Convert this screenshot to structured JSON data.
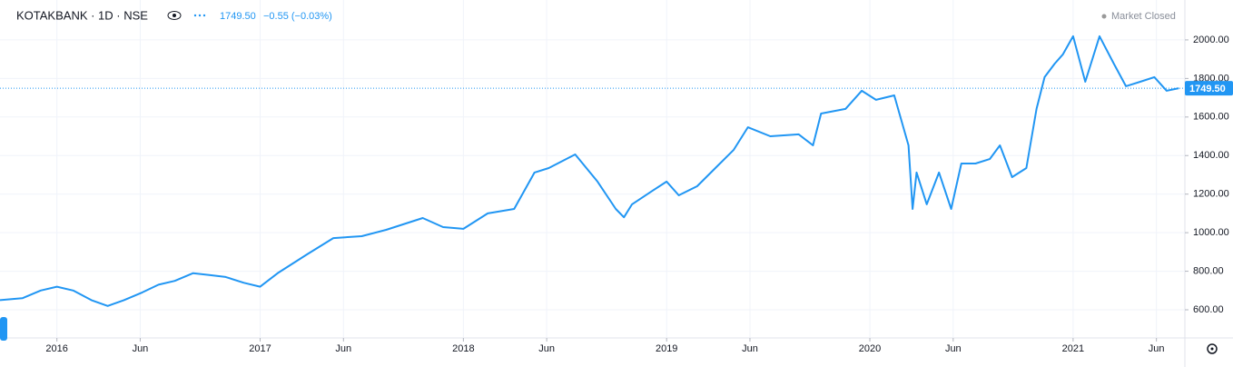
{
  "header": {
    "symbol": "KOTAKBANK · 1D · NSE",
    "price": "1749.50",
    "change": "−0.55 (−0.03%)",
    "status": "Market Closed"
  },
  "chart_data": {
    "type": "line",
    "x": [
      2015.72,
      2015.83,
      2015.92,
      2016.0,
      2016.08,
      2016.17,
      2016.25,
      2016.33,
      2016.42,
      2016.5,
      2016.58,
      2016.67,
      2016.75,
      2016.83,
      2016.92,
      2017.0,
      2017.09,
      2017.23,
      2017.36,
      2017.5,
      2017.62,
      2017.8,
      2017.9,
      2018.0,
      2018.12,
      2018.25,
      2018.35,
      2018.42,
      2018.55,
      2018.66,
      2018.75,
      2018.79,
      2018.83,
      2018.93,
      2019.0,
      2019.06,
      2019.15,
      2019.24,
      2019.33,
      2019.4,
      2019.51,
      2019.65,
      2019.72,
      2019.76,
      2019.88,
      2019.96,
      2020.03,
      2020.12,
      2020.19,
      2020.21,
      2020.23,
      2020.28,
      2020.34,
      2020.4,
      2020.45,
      2020.52,
      2020.59,
      2020.64,
      2020.7,
      2020.77,
      2020.82,
      2020.86,
      2020.91,
      2020.95,
      2021.0,
      2021.06,
      2021.13,
      2021.2,
      2021.26,
      2021.33,
      2021.4,
      2021.46,
      2021.52
    ],
    "series": [
      {
        "name": "KOTAKBANK",
        "color": "#2196f3",
        "values": [
          650,
          660,
          700,
          720,
          700,
          650,
          620,
          650,
          690,
          730,
          750,
          790,
          780,
          770,
          740,
          720,
          793,
          887,
          972,
          982,
          1015,
          1076,
          1029,
          1020,
          1100,
          1123,
          1312,
          1335,
          1406,
          1265,
          1123,
          1080,
          1147,
          1217,
          1265,
          1194,
          1241,
          1335,
          1430,
          1547,
          1500,
          1510,
          1453,
          1618,
          1642,
          1736,
          1689,
          1712,
          1453,
          1123,
          1312,
          1147,
          1312,
          1123,
          1359,
          1359,
          1382,
          1453,
          1288,
          1335,
          1642,
          1807,
          1877,
          1925,
          2019,
          1783,
          2019,
          1877,
          1760,
          1783,
          1807,
          1736,
          1749.5
        ]
      }
    ],
    "price_line": {
      "value": 1749.5,
      "label": "1749.50"
    },
    "xlim": [
      2015.72,
      2021.55
    ],
    "ylim": [
      454,
      2207
    ],
    "xticks": [
      {
        "value": 2016.0,
        "label": "2016"
      },
      {
        "value": 2016.41,
        "label": "Jun"
      },
      {
        "value": 2017.0,
        "label": "2017"
      },
      {
        "value": 2017.41,
        "label": "Jun"
      },
      {
        "value": 2018.0,
        "label": "2018"
      },
      {
        "value": 2018.41,
        "label": "Jun"
      },
      {
        "value": 2019.0,
        "label": "2019"
      },
      {
        "value": 2019.41,
        "label": "Jun"
      },
      {
        "value": 2020.0,
        "label": "2020"
      },
      {
        "value": 2020.41,
        "label": "Jun"
      },
      {
        "value": 2021.0,
        "label": "2021"
      },
      {
        "value": 2021.41,
        "label": "Jun"
      }
    ],
    "yticks": [
      {
        "value": 600,
        "label": "600.00"
      },
      {
        "value": 800,
        "label": "800.00"
      },
      {
        "value": 1000,
        "label": "1000.00"
      },
      {
        "value": 1200,
        "label": "1200.00"
      },
      {
        "value": 1400,
        "label": "1400.00"
      },
      {
        "value": 1600,
        "label": "1600.00"
      },
      {
        "value": 1800,
        "label": "1800.00"
      },
      {
        "value": 2000,
        "label": "2000.00"
      }
    ],
    "grid": true
  }
}
